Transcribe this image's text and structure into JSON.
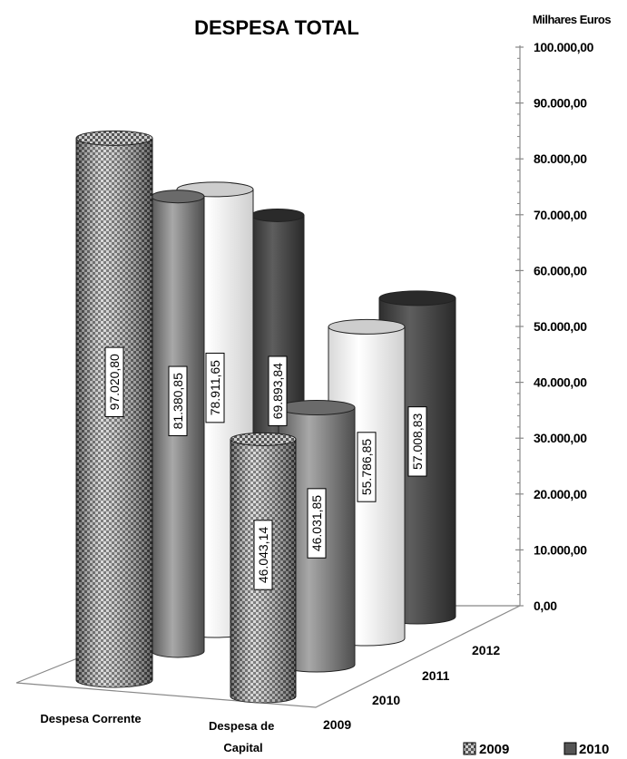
{
  "chart_data": {
    "type": "bar",
    "title": "DESPESA TOTAL",
    "unit_label": "Milhares Euros",
    "categories": [
      "Despesa Corrente",
      "Despesa de Capital"
    ],
    "series": [
      {
        "name": "2009",
        "values": [
          97020.8,
          46043.14
        ],
        "labels": [
          "97.020,80",
          "46.043,14"
        ]
      },
      {
        "name": "2010",
        "values": [
          81380.85,
          46031.85
        ],
        "labels": [
          "81.380,85",
          "46.031,85"
        ]
      },
      {
        "name": "2011",
        "values": [
          78911.65,
          55786.85
        ],
        "labels": [
          "78.911,65",
          "55.786,85"
        ]
      },
      {
        "name": "2012",
        "values": [
          69893.84,
          57008.83
        ],
        "labels": [
          "69.893,84",
          "57.008,83"
        ]
      }
    ],
    "ylim": [
      0,
      100000
    ],
    "yticks": [
      0,
      10000,
      20000,
      30000,
      40000,
      50000,
      60000,
      70000,
      80000,
      90000,
      100000
    ],
    "ytick_labels": [
      "0,00",
      "10.000,00",
      "20.000,00",
      "30.000,00",
      "40.000,00",
      "50.000,00",
      "60.000,00",
      "70.000,00",
      "80.000,00",
      "90.000,00",
      "100.000,00"
    ],
    "depth_labels": [
      "2009",
      "2010",
      "2011",
      "2012"
    ],
    "legend": [
      "2009",
      "2010"
    ],
    "legend_position": "bottom-right",
    "colors": {
      "2009": "#9a9a9a",
      "2010": "#8a8a8a",
      "2011": "#ffffff",
      "2012": "#4a4a4a"
    }
  }
}
